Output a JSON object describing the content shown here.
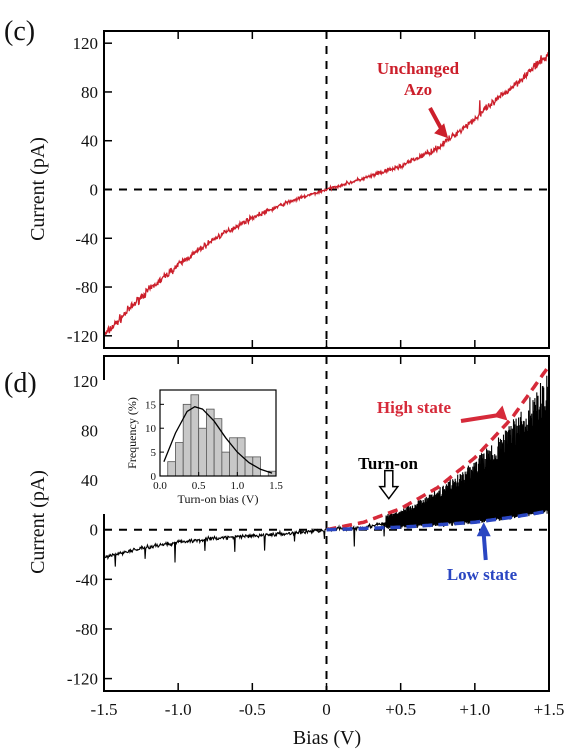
{
  "chart_data": [
    {
      "panel": "(c)",
      "type": "line",
      "ylabel": "Current (pA)",
      "xlim": [
        -1.5,
        1.5
      ],
      "ylim": [
        -130,
        130
      ],
      "yticks": [
        120,
        80,
        40,
        0,
        -40,
        -80,
        -120
      ],
      "series": [
        {
          "color": "#cc1f2b",
          "x": [
            -1.5,
            -1.25,
            -1.0,
            -0.75,
            -0.5,
            -0.25,
            0.0,
            0.25,
            0.5,
            0.75,
            1.0,
            1.25,
            1.5
          ],
          "y": [
            -120,
            -88,
            -62,
            -40,
            -23,
            -10,
            0,
            9,
            19,
            34,
            58,
            84,
            111
          ]
        }
      ],
      "annotations": [
        {
          "text_lines": [
            "Unchanged",
            "Azo"
          ],
          "color": "#cc1f2b",
          "arrow_to": [
            0.82,
            42
          ]
        }
      ]
    },
    {
      "panel": "(d)",
      "type": "line",
      "xlabel": "Bias (V)",
      "ylabel": "Current (pA)",
      "xlim": [
        -1.5,
        1.5
      ],
      "ylim": [
        -130,
        140
      ],
      "xtick_labels": [
        "-1.5",
        "-1.0",
        "-0.5",
        "0",
        "+0.5",
        "+1.0",
        "+1.5"
      ],
      "xticks": [
        -1.5,
        -1.0,
        -0.5,
        0,
        0.5,
        1.0,
        1.5
      ],
      "yticks": [
        120,
        80,
        40,
        0,
        -40,
        -80,
        -120
      ],
      "series": [
        {
          "color": "#000000",
          "x": [
            -1.5,
            -1.25,
            -1.0,
            -0.75,
            -0.5,
            -0.25,
            0.0,
            0.25,
            0.4
          ],
          "y": [
            -22,
            -15,
            -10,
            -7,
            -5,
            -3,
            0,
            2,
            5
          ]
        },
        {
          "style": "dashed",
          "color": "#d62a3a",
          "x": [
            0.0,
            0.25,
            0.5,
            0.75,
            1.0,
            1.25,
            1.5
          ],
          "y": [
            0,
            6,
            17,
            34,
            58,
            90,
            132
          ]
        },
        {
          "style": "dashed",
          "color": "#2a46c2",
          "x": [
            0.0,
            0.5,
            1.0,
            1.25,
            1.5
          ],
          "y": [
            0,
            2,
            6,
            10,
            15
          ]
        }
      ],
      "annotations": [
        {
          "text": "High state",
          "color": "#d62a3a",
          "arrow_to": [
            1.22,
            88
          ]
        },
        {
          "text": "Turn-on",
          "color": "#000000",
          "hollow_arrow_to": [
            0.42,
            25
          ]
        },
        {
          "text": "Low state",
          "color": "#2a46c2",
          "arrow_to": [
            1.06,
            6
          ]
        }
      ],
      "inset": {
        "type": "bar",
        "xlabel": "Turn-on bias (V)",
        "ylabel": "Frequency (%)",
        "xlim": [
          0.0,
          1.5
        ],
        "ylim": [
          0,
          18
        ],
        "xticks": [
          "0.0",
          "0.5",
          "1.0",
          "1.5"
        ],
        "yticks": [
          "15",
          "10",
          "5",
          "0"
        ],
        "bin_width": 0.1,
        "bins": [
          0.1,
          0.2,
          0.3,
          0.4,
          0.5,
          0.6,
          0.7,
          0.8,
          0.9,
          1.0,
          1.1,
          1.2,
          1.3,
          1.4
        ],
        "values": [
          3,
          7,
          15,
          17,
          10,
          14,
          12,
          5,
          8,
          8,
          4,
          4,
          0,
          1
        ],
        "fit": {
          "x": [
            0.05,
            0.2,
            0.35,
            0.45,
            0.55,
            0.7,
            0.85,
            1.0,
            1.15,
            1.3,
            1.45
          ],
          "y": [
            3,
            9,
            13.5,
            14.5,
            14,
            11.5,
            8,
            5,
            2.8,
            1.4,
            0.6
          ]
        }
      }
    }
  ]
}
